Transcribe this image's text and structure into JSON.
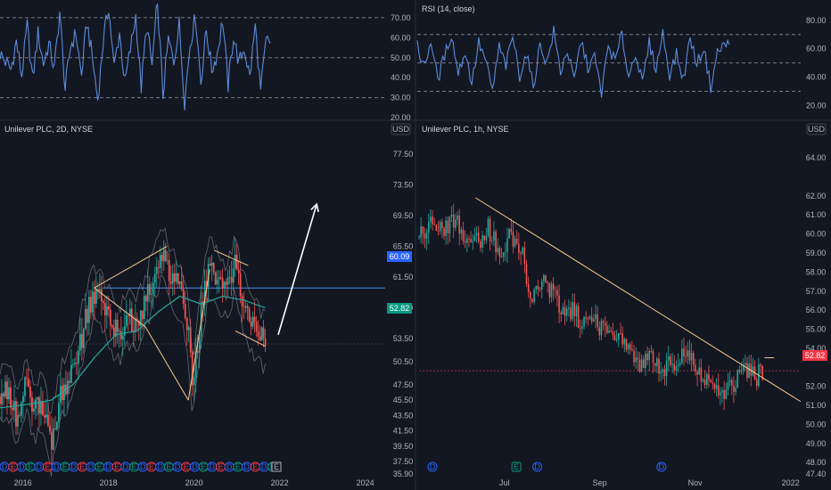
{
  "colors": {
    "background": "#131722",
    "rsi_line": "#5b8bd9",
    "rsi_bands": "#787b86",
    "candle_up": "#26a69a",
    "candle_down": "#ef5350",
    "ma_line": "#26a69a",
    "trendline": "#f7c98a",
    "hline_blue": "#2962ff",
    "last_price_badge": "#089981",
    "arrow": "#ffffff",
    "event_dividend": "#2962ff",
    "event_earnings": "#f23645",
    "event_split": "#089981"
  },
  "left_rsi": {
    "y_ticks": [
      "70.00",
      "60.00",
      "50.00",
      "40.00",
      "30.00",
      "20.00"
    ]
  },
  "right_rsi": {
    "title": "RSI (14, close)",
    "y_ticks": [
      "80.00",
      "60.00",
      "40.00",
      "20.00"
    ]
  },
  "left_price": {
    "title": "Unilever PLC, 2D, NYSE",
    "currency": "USD",
    "y_ticks": [
      "77.50",
      "73.50",
      "69.50",
      "65.50",
      "61.50",
      "57.50",
      "53.50",
      "50.50",
      "47.50",
      "45.50",
      "43.50",
      "41.50",
      "39.50",
      "37.50",
      "35.90"
    ],
    "hline_label": "60.09",
    "last_price": "52.82",
    "x_ticks": [
      "2016",
      "2018",
      "2020",
      "2022",
      "2024"
    ],
    "event_marks": [
      "D",
      "E",
      "D",
      "E",
      "D",
      "E",
      "D",
      "E",
      "D",
      "E",
      "D",
      "E",
      "D",
      "E",
      "D",
      "E",
      "D",
      "E",
      "D",
      "E",
      "D",
      "E",
      "D",
      "E",
      "D",
      "E",
      "D",
      "E",
      "D",
      "E",
      "D",
      "E"
    ]
  },
  "right_price": {
    "title": "Unilever PLC, 1h, NYSE",
    "currency": "USD",
    "y_ticks": [
      "64.00",
      "62.00",
      "61.00",
      "60.00",
      "59.00",
      "58.00",
      "57.00",
      "56.00",
      "55.00",
      "54.00",
      "52.00",
      "51.00",
      "50.00",
      "49.00",
      "48.00",
      "47.40"
    ],
    "last_price": "52.82",
    "x_ticks": [
      "Jul",
      "Sep",
      "Nov",
      "2022"
    ],
    "event_marks": [
      "D",
      "E",
      "D",
      "D"
    ]
  },
  "chart_data": [
    {
      "type": "line",
      "panel": "RSI (left, 2D)",
      "ylim": [
        20,
        78
      ],
      "series": [
        {
          "values": [
            52,
            48,
            44,
            58,
            41,
            66,
            39,
            62,
            47,
            57,
            44,
            73,
            34,
            56,
            62,
            41,
            68,
            50,
            29,
            58,
            76,
            45,
            63,
            37,
            54,
            71,
            35,
            66,
            46,
            79,
            31,
            59,
            48,
            67,
            28,
            57,
            71,
            38,
            64,
            44,
            52,
            69,
            36,
            61,
            47,
            55,
            40,
            66,
            33,
            58
          ]
        }
      ]
    },
    {
      "type": "line",
      "panel": "RSI (right, 1h)",
      "title": "RSI (14, close)",
      "ylim": [
        14,
        83
      ],
      "series": [
        {
          "values": [
            62,
            47,
            66,
            38,
            55,
            70,
            43,
            58,
            36,
            64,
            52,
            30,
            61,
            48,
            69,
            41,
            57,
            33,
            63,
            50,
            72,
            44,
            59,
            37,
            66,
            47,
            54,
            29,
            62,
            51,
            70,
            40,
            58,
            35,
            64,
            46,
            71,
            42,
            56,
            38,
            68,
            49,
            61,
            33,
            57,
            63
          ]
        }
      ]
    },
    {
      "type": "candlestick",
      "panel": "Unilever PLC, 2D, NYSE",
      "currency": "USD",
      "ylim": [
        35.9,
        79
      ],
      "x_range": [
        2015.8,
        2024.8
      ],
      "x_ticks": [
        "2016",
        "2018",
        "2020",
        "2022",
        "2024"
      ],
      "close_series": [
        [
          2015.8,
          46.0
        ],
        [
          2016.0,
          47.0
        ],
        [
          2016.2,
          43.0
        ],
        [
          2016.4,
          47.5
        ],
        [
          2016.6,
          44.0
        ],
        [
          2016.8,
          45.0
        ],
        [
          2017.0,
          40.0
        ],
        [
          2017.2,
          46.0
        ],
        [
          2017.4,
          48.5
        ],
        [
          2017.6,
          51.0
        ],
        [
          2017.8,
          56.0
        ],
        [
          2018.0,
          59.5
        ],
        [
          2018.2,
          58.0
        ],
        [
          2018.4,
          55.5
        ],
        [
          2018.6,
          54.0
        ],
        [
          2018.8,
          56.5
        ],
        [
          2019.0,
          55.0
        ],
        [
          2019.2,
          58.0
        ],
        [
          2019.4,
          62.0
        ],
        [
          2019.6,
          65.0
        ],
        [
          2019.8,
          61.0
        ],
        [
          2020.0,
          60.0
        ],
        [
          2020.2,
          55.0
        ],
        [
          2020.3,
          47.0
        ],
        [
          2020.5,
          57.0
        ],
        [
          2020.7,
          63.0
        ],
        [
          2020.9,
          61.0
        ],
        [
          2021.1,
          59.5
        ],
        [
          2021.3,
          63.0
        ],
        [
          2021.5,
          58.0
        ],
        [
          2021.7,
          55.0
        ],
        [
          2021.9,
          53.5
        ],
        [
          2022.0,
          52.82
        ]
      ],
      "ma_series": [
        [
          2015.8,
          44.5
        ],
        [
          2016.5,
          45.0
        ],
        [
          2017.0,
          45.5
        ],
        [
          2017.5,
          47.5
        ],
        [
          2018.0,
          51.0
        ],
        [
          2018.5,
          54.0
        ],
        [
          2019.0,
          54.5
        ],
        [
          2019.5,
          57.0
        ],
        [
          2020.0,
          59.0
        ],
        [
          2020.5,
          58.0
        ],
        [
          2021.0,
          59.0
        ],
        [
          2021.5,
          58.5
        ],
        [
          2022.0,
          57.5
        ]
      ],
      "horizontal_line": 60.09,
      "last_price": 52.82,
      "drawings": [
        {
          "type": "trendline",
          "from": [
            2018.0,
            60.1
          ],
          "to": [
            2019.7,
            65.5
          ]
        },
        {
          "type": "trendline",
          "from": [
            2018.0,
            60.1
          ],
          "to": [
            2019.2,
            55.0
          ]
        },
        {
          "type": "trendline",
          "from": [
            2019.2,
            55.0
          ],
          "to": [
            2020.2,
            45.5
          ]
        },
        {
          "type": "trendline",
          "from": [
            2020.2,
            45.5
          ],
          "to": [
            2020.7,
            62.5
          ]
        },
        {
          "type": "trendline",
          "from": [
            2020.8,
            65.0
          ],
          "to": [
            2021.6,
            63.0
          ]
        },
        {
          "type": "trendline",
          "from": [
            2021.3,
            54.5
          ],
          "to": [
            2022.0,
            52.5
          ]
        },
        {
          "type": "arrow",
          "from": [
            2022.3,
            54.0
          ],
          "to": [
            2023.2,
            71.0
          ]
        }
      ]
    },
    {
      "type": "candlestick",
      "panel": "Unilever PLC, 1h, NYSE",
      "currency": "USD",
      "ylim": [
        47.4,
        64.8
      ],
      "x_range": [
        0,
        100
      ],
      "x_ticks": [
        {
          "label": "Jul",
          "x": 20
        },
        {
          "label": "Sep",
          "x": 45
        },
        {
          "label": "Nov",
          "x": 70
        },
        {
          "label": "2022",
          "x": 95
        }
      ],
      "close_series": [
        [
          0,
          59.8
        ],
        [
          3,
          60.5
        ],
        [
          6,
          60.2
        ],
        [
          9,
          60.8
        ],
        [
          12,
          60.0
        ],
        [
          15,
          59.5
        ],
        [
          18,
          60.4
        ],
        [
          21,
          59.2
        ],
        [
          24,
          59.8
        ],
        [
          27,
          59.0
        ],
        [
          29,
          56.5
        ],
        [
          31,
          57.5
        ],
        [
          34,
          57.2
        ],
        [
          37,
          56.2
        ],
        [
          40,
          56.0
        ],
        [
          43,
          55.2
        ],
        [
          46,
          55.6
        ],
        [
          49,
          54.6
        ],
        [
          52,
          55.0
        ],
        [
          55,
          53.8
        ],
        [
          58,
          53.2
        ],
        [
          61,
          53.6
        ],
        [
          64,
          52.8
        ],
        [
          67,
          53.4
        ],
        [
          70,
          53.8
        ],
        [
          73,
          52.9
        ],
        [
          76,
          52.2
        ],
        [
          79,
          51.2
        ],
        [
          82,
          52.0
        ],
        [
          85,
          53.1
        ],
        [
          88,
          52.4
        ],
        [
          90,
          52.82
        ]
      ],
      "last_price": 52.82,
      "drawings": [
        {
          "type": "trendline",
          "from": [
            14.8,
            61.9
          ],
          "to": [
            100,
            51.2
          ]
        },
        {
          "type": "trendline",
          "from": [
            90.5,
            53.5
          ],
          "to": [
            93.0,
            53.5
          ]
        }
      ]
    }
  ]
}
